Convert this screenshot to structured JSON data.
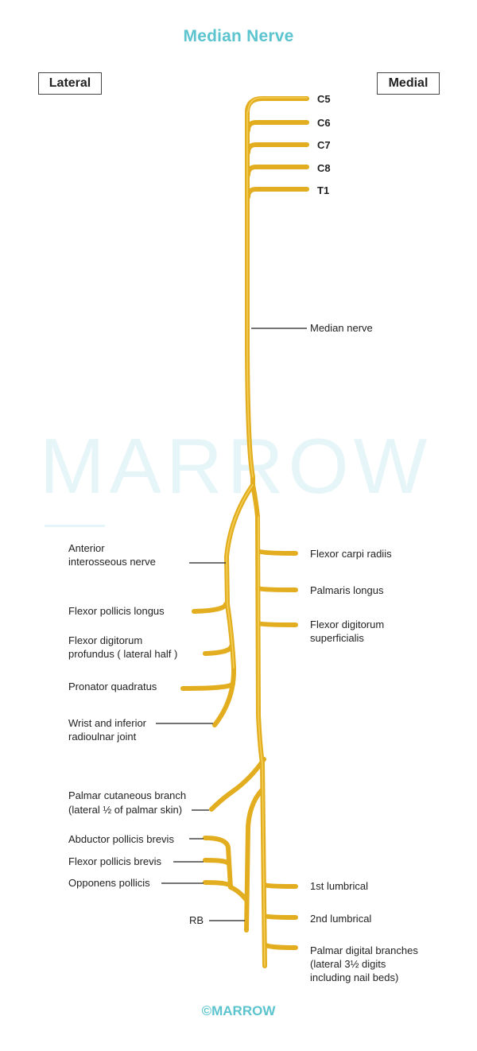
{
  "title": "Median Nerve",
  "sides": {
    "lateral": "Lateral",
    "medial": "Medial"
  },
  "watermark": "MARROW",
  "roots": [
    "C5",
    "C6",
    "C7",
    "C8",
    "T1"
  ],
  "main_label": "Median nerve",
  "aion": {
    "line1": "Anterior",
    "line2": "interosseous nerve"
  },
  "aion_branches": {
    "fpl": "Flexor pollicis longus",
    "fdp": {
      "line1": "Flexor digitorum",
      "line2": "profundus ( lateral half )"
    },
    "pq": "Pronator quadratus",
    "wrist": {
      "line1": "Wrist and inferior",
      "line2": "radioulnar joint"
    }
  },
  "forearm_branches": {
    "fcr": "Flexor carpi radiis",
    "pl": "Palmaris longus",
    "fds": {
      "line1": "Flexor digitorum",
      "line2": "superficialis"
    }
  },
  "palmar": {
    "line1": "Palmar cutaneous branch",
    "line2": "(lateral ½ of palmar skin)"
  },
  "thenar": {
    "apb": "Abductor pollicis brevis",
    "fpb": "Flexor pollicis brevis",
    "op": "Opponens pollicis",
    "rb": "RB"
  },
  "hand": {
    "l1": "1st lumbrical",
    "l2": "2nd lumbrical",
    "digital": {
      "line1": "Palmar digital branches",
      "line2": "(lateral 3½ digits",
      "line3": "including nail beds)"
    }
  },
  "copyright": "©MARROW",
  "colors": {
    "nerve": "#e2ad1e",
    "nerve_highlight": "#f6d25e",
    "title": "#5bc4ce",
    "leader": "#222222"
  }
}
